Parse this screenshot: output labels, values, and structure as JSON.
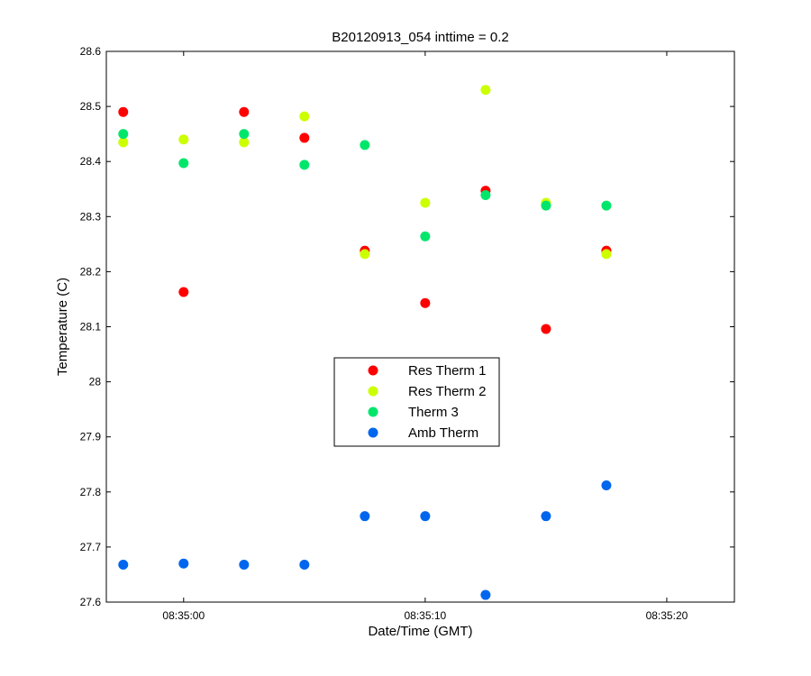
{
  "chart_data": {
    "type": "scatter",
    "title": "B20120913_054 inttime = 0.2",
    "xlabel": "Date/Time (GMT)",
    "ylabel": "Temperature (C)",
    "xlim": [
      "08:34:56.8",
      "08:35:22.8"
    ],
    "ylim": [
      27.6,
      28.6
    ],
    "x_ticks": [
      "08:35:00",
      "08:35:10",
      "08:35:20"
    ],
    "y_ticks": [
      "27.6",
      "27.7",
      "27.8",
      "27.9",
      "28",
      "28.1",
      "28.2",
      "28.3",
      "28.4",
      "28.5",
      "28.6"
    ],
    "grid": false,
    "legend_position": "center",
    "x": [
      "08:34:57.5",
      "08:35:00.0",
      "08:35:02.5",
      "08:35:05.0",
      "08:35:07.5",
      "08:35:10.0",
      "08:35:12.5",
      "08:35:15.0",
      "08:35:17.5"
    ],
    "series": [
      {
        "name": "Res Therm 1",
        "color": "#ff0000",
        "values": [
          28.49,
          28.163,
          28.49,
          28.443,
          28.238,
          28.143,
          28.347,
          28.096,
          28.238
        ]
      },
      {
        "name": "Res Therm 2",
        "color": "#ccff00",
        "values": [
          28.435,
          28.44,
          28.435,
          28.482,
          28.232,
          28.325,
          28.53,
          28.325,
          28.232
        ]
      },
      {
        "name": "Therm 3",
        "color": "#00e66b",
        "values": [
          28.45,
          28.397,
          28.45,
          28.394,
          28.43,
          28.264,
          28.339,
          28.32,
          28.32
        ]
      },
      {
        "name": "Amb Therm",
        "color": "#0066ee",
        "values": [
          27.668,
          27.67,
          27.668,
          27.668,
          27.756,
          27.756,
          27.613,
          27.756,
          27.812
        ]
      }
    ]
  }
}
